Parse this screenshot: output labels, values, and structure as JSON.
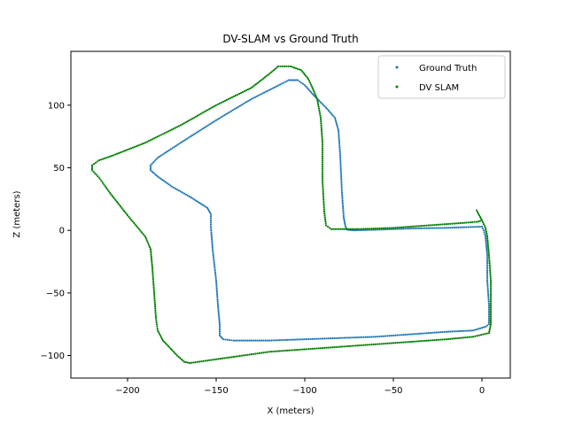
{
  "chart_data": {
    "type": "scatter",
    "title": "DV-SLAM vs Ground Truth",
    "xlabel": "X (meters)",
    "ylabel": "Z (meters)",
    "xlim": [
      -232,
      16
    ],
    "ylim": [
      -118,
      143
    ],
    "xticks": [
      -200,
      -150,
      -100,
      -50,
      0
    ],
    "yticks": [
      -100,
      -50,
      0,
      50,
      100
    ],
    "xtick_labels": [
      "−200",
      "−150",
      "−100",
      "−50",
      "0"
    ],
    "ytick_labels": [
      "−100",
      "−50",
      "0",
      "50",
      "100"
    ],
    "grid": false,
    "legend_position": "top-right",
    "series": [
      {
        "name": "Ground Truth",
        "color": "#1f77b4",
        "points": [
          [
            0,
            3
          ],
          [
            -20,
            2
          ],
          [
            -40,
            1.5
          ],
          [
            -60,
            0.5
          ],
          [
            -72,
            0
          ],
          [
            -76,
            0.5
          ],
          [
            -77,
            3
          ],
          [
            -78,
            10
          ],
          [
            -79,
            30
          ],
          [
            -80,
            60
          ],
          [
            -81,
            80
          ],
          [
            -83,
            90
          ],
          [
            -88,
            98
          ],
          [
            -95,
            108
          ],
          [
            -100,
            116
          ],
          [
            -104,
            120
          ],
          [
            -109,
            120
          ],
          [
            -116,
            115
          ],
          [
            -130,
            105
          ],
          [
            -150,
            88
          ],
          [
            -170,
            70
          ],
          [
            -183,
            58
          ],
          [
            -187,
            52
          ],
          [
            -187,
            48
          ],
          [
            -183,
            43
          ],
          [
            -175,
            35
          ],
          [
            -165,
            27
          ],
          [
            -155,
            18
          ],
          [
            -153,
            13
          ],
          [
            -153,
            3
          ],
          [
            -152,
            -15
          ],
          [
            -150,
            -40
          ],
          [
            -149,
            -60
          ],
          [
            -148,
            -75
          ],
          [
            -148,
            -84
          ],
          [
            -146,
            -87
          ],
          [
            -140,
            -88
          ],
          [
            -120,
            -88
          ],
          [
            -100,
            -87
          ],
          [
            -80,
            -86
          ],
          [
            -60,
            -85
          ],
          [
            -40,
            -83
          ],
          [
            -20,
            -81
          ],
          [
            -5,
            -80
          ],
          [
            2,
            -77
          ],
          [
            4,
            -75
          ],
          [
            4,
            -60
          ],
          [
            3,
            -40
          ],
          [
            3,
            -20
          ],
          [
            2,
            -5
          ],
          [
            1,
            0
          ],
          [
            0,
            3
          ]
        ]
      },
      {
        "name": "DV SLAM",
        "color": "#008000",
        "points": [
          [
            -3,
            16
          ],
          [
            0,
            8
          ],
          [
            2,
            2
          ],
          [
            3,
            -5
          ],
          [
            4,
            -20
          ],
          [
            5,
            -40
          ],
          [
            5,
            -60
          ],
          [
            5,
            -75
          ],
          [
            4,
            -82
          ],
          [
            -5,
            -85
          ],
          [
            -20,
            -87
          ],
          [
            -40,
            -89
          ],
          [
            -60,
            -91
          ],
          [
            -80,
            -93
          ],
          [
            -100,
            -95
          ],
          [
            -120,
            -97
          ],
          [
            -140,
            -101
          ],
          [
            -155,
            -104
          ],
          [
            -165,
            -106
          ],
          [
            -168,
            -105
          ],
          [
            -172,
            -100
          ],
          [
            -180,
            -88
          ],
          [
            -183,
            -80
          ],
          [
            -184,
            -70
          ],
          [
            -185,
            -50
          ],
          [
            -186,
            -30
          ],
          [
            -187,
            -15
          ],
          [
            -190,
            -5
          ],
          [
            -200,
            12
          ],
          [
            -210,
            30
          ],
          [
            -216,
            42
          ],
          [
            -220,
            48
          ],
          [
            -220,
            52
          ],
          [
            -216,
            56
          ],
          [
            -208,
            60
          ],
          [
            -190,
            70
          ],
          [
            -170,
            84
          ],
          [
            -150,
            100
          ],
          [
            -130,
            114
          ],
          [
            -120,
            125
          ],
          [
            -115,
            131
          ],
          [
            -108,
            131
          ],
          [
            -102,
            128
          ],
          [
            -98,
            121
          ],
          [
            -96,
            115
          ],
          [
            -93,
            105
          ],
          [
            -91,
            90
          ],
          [
            -90,
            70
          ],
          [
            -90,
            40
          ],
          [
            -89,
            15
          ],
          [
            -88,
            4
          ],
          [
            -85,
            1
          ],
          [
            -70,
            1
          ],
          [
            -50,
            2
          ],
          [
            -30,
            4
          ],
          [
            -10,
            6
          ],
          [
            -2,
            7
          ],
          [
            0,
            8
          ]
        ]
      }
    ]
  }
}
